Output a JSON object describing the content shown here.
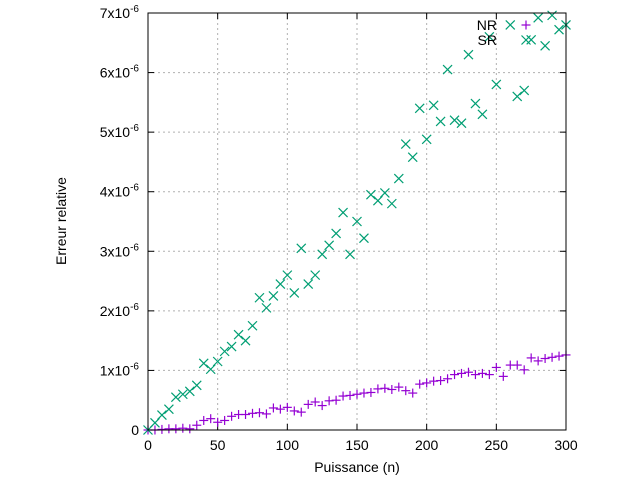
{
  "chart_data": {
    "type": "scatter",
    "title": "",
    "xlabel": "Puissance (n)",
    "ylabel": "Erreur relative",
    "xlim": [
      0,
      300
    ],
    "ylim": [
      0,
      7e-06
    ],
    "grid": true,
    "legend_position": "top-right",
    "x_ticks": [
      {
        "value": 0,
        "label": "0"
      },
      {
        "value": 50,
        "label": "50"
      },
      {
        "value": 100,
        "label": "100"
      },
      {
        "value": 150,
        "label": "150"
      },
      {
        "value": 200,
        "label": "200"
      },
      {
        "value": 250,
        "label": "250"
      },
      {
        "value": 300,
        "label": "300"
      }
    ],
    "y_ticks": [
      {
        "value": 0,
        "base": "0",
        "exp": ""
      },
      {
        "value": 1e-06,
        "base": "1x10",
        "exp": "-6"
      },
      {
        "value": 2e-06,
        "base": "2x10",
        "exp": "-6"
      },
      {
        "value": 3e-06,
        "base": "3x10",
        "exp": "-6"
      },
      {
        "value": 4e-06,
        "base": "4x10",
        "exp": "-6"
      },
      {
        "value": 5e-06,
        "base": "5x10",
        "exp": "-6"
      },
      {
        "value": 6e-06,
        "base": "6x10",
        "exp": "-6"
      },
      {
        "value": 7e-06,
        "base": "7x10",
        "exp": "-6"
      }
    ],
    "series": [
      {
        "name": "NR",
        "marker": "plus",
        "color": "#9400d3",
        "x": [
          0,
          5,
          10,
          15,
          20,
          25,
          30,
          35,
          40,
          45,
          50,
          55,
          60,
          65,
          70,
          75,
          80,
          85,
          90,
          95,
          100,
          105,
          110,
          115,
          120,
          125,
          130,
          135,
          140,
          145,
          150,
          155,
          160,
          165,
          170,
          175,
          180,
          185,
          190,
          195,
          200,
          205,
          210,
          215,
          220,
          225,
          230,
          235,
          240,
          245,
          250,
          255,
          260,
          265,
          270,
          275,
          280,
          285,
          290,
          295,
          300
        ],
        "y": [
          0,
          0,
          1e-08,
          2e-08,
          2e-08,
          3e-08,
          2e-08,
          8e-08,
          1.6e-07,
          1.9e-07,
          1.3e-07,
          1.6e-07,
          2.3e-07,
          2.6e-07,
          2.6e-07,
          2.8e-07,
          2.9e-07,
          2.7e-07,
          3.7e-07,
          3.5e-07,
          3.8e-07,
          3.2e-07,
          3e-07,
          4.3e-07,
          4.7e-07,
          4.1e-07,
          4.9e-07,
          5e-07,
          5.7e-07,
          5.8e-07,
          6e-07,
          6.2e-07,
          6.3e-07,
          6.9e-07,
          7e-07,
          6.8e-07,
          7.2e-07,
          6.6e-07,
          6.2e-07,
          7.7e-07,
          7.9e-07,
          8.2e-07,
          8.3e-07,
          8.6e-07,
          9.3e-07,
          9.5e-07,
          9.7e-07,
          9.3e-07,
          9.5e-07,
          9.3e-07,
          1.05e-06,
          9e-07,
          1.09e-06,
          1.09e-06,
          1.01e-06,
          1.21e-06,
          1.16e-06,
          1.2e-06,
          1.22e-06,
          1.24e-06,
          1.26e-06
        ]
      },
      {
        "name": "SR",
        "marker": "x",
        "color": "#009e73",
        "x": [
          0,
          5,
          10,
          15,
          20,
          25,
          30,
          35,
          40,
          45,
          50,
          55,
          60,
          65,
          70,
          75,
          80,
          85,
          90,
          95,
          100,
          105,
          110,
          115,
          120,
          125,
          130,
          135,
          140,
          145,
          150,
          155,
          160,
          165,
          170,
          175,
          180,
          185,
          190,
          195,
          200,
          205,
          210,
          215,
          220,
          225,
          230,
          235,
          240,
          245,
          250,
          255,
          260,
          265,
          270,
          275,
          280,
          285,
          290,
          295,
          300
        ],
        "y": [
          0,
          1.2e-07,
          2.5e-07,
          3.5e-07,
          5.5e-07,
          6e-07,
          6.5e-07,
          7.5e-07,
          1.12e-06,
          1.02e-06,
          1.15e-06,
          1.32e-06,
          1.4e-06,
          1.6e-06,
          1.5e-06,
          1.75e-06,
          2.22e-06,
          2.05e-06,
          2.25e-06,
          2.45e-06,
          2.6e-06,
          2.3e-06,
          3.05e-06,
          2.45e-06,
          2.6e-06,
          2.95e-06,
          3.1e-06,
          3.3e-06,
          3.65e-06,
          2.95e-06,
          3.5e-06,
          3.22e-06,
          3.95e-06,
          3.85e-06,
          3.98e-06,
          3.8e-06,
          4.22e-06,
          4.8e-06,
          4.58e-06,
          5.4e-06,
          4.88e-06,
          5.45e-06,
          5.18e-06,
          6.05e-06,
          5.2e-06,
          5.15e-06,
          6.3e-06,
          5.48e-06,
          5.3e-06,
          6.6e-06,
          5.8e-06,
          7.02e-06,
          6.8e-06,
          5.6e-06,
          5.7e-06,
          6.55e-06,
          6.92e-06,
          6.45e-06,
          6.96e-06,
          6.72e-06,
          6.8e-06
        ]
      }
    ]
  }
}
